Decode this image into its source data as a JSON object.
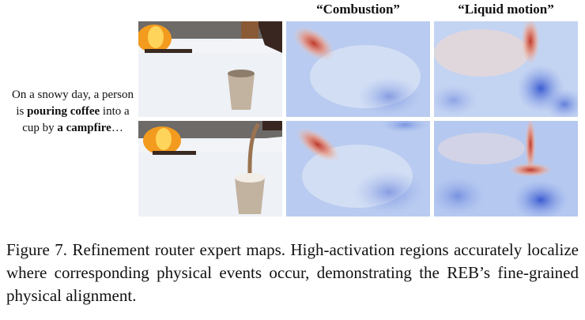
{
  "column_titles": [
    "“Combustion”",
    "“Liquid motion”"
  ],
  "prompt": {
    "part1": "On a snowy day, a person is ",
    "bold1": "pouring coffee",
    "part2": " into a cup by ",
    "bold2": "a campfire",
    "part3": "…"
  },
  "caption": "Figure 7.  Refinement router expert maps.  High-activation regions accurately localize where corresponding physical events occur, demonstrating the REB’s fine-grained physical alignment.",
  "colors": {
    "hot": "#c0392b",
    "cold": "#3b5bd0",
    "neutral": "#dde6f5"
  }
}
